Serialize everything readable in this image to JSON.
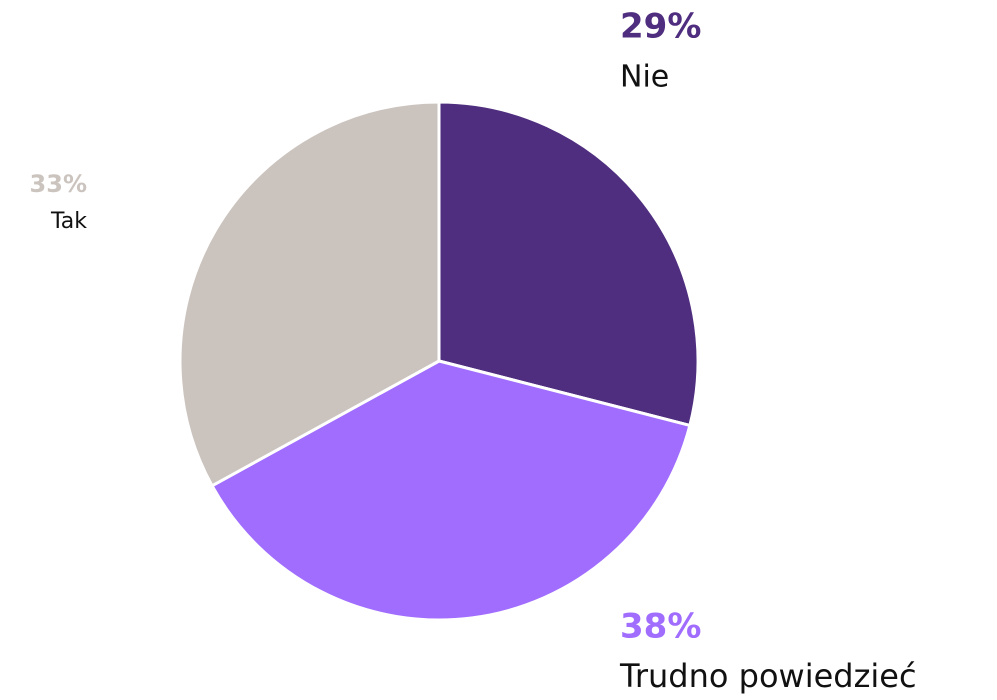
{
  "chart_data": {
    "type": "pie",
    "categories": [
      "Nie",
      "Trudno powiedzieć",
      "Tak"
    ],
    "values": [
      29,
      38,
      33
    ],
    "value_labels": [
      "29%",
      "38%",
      "33%"
    ],
    "colors": [
      "#4f2d7f",
      "#a06dff",
      "#cbc3be"
    ]
  }
}
